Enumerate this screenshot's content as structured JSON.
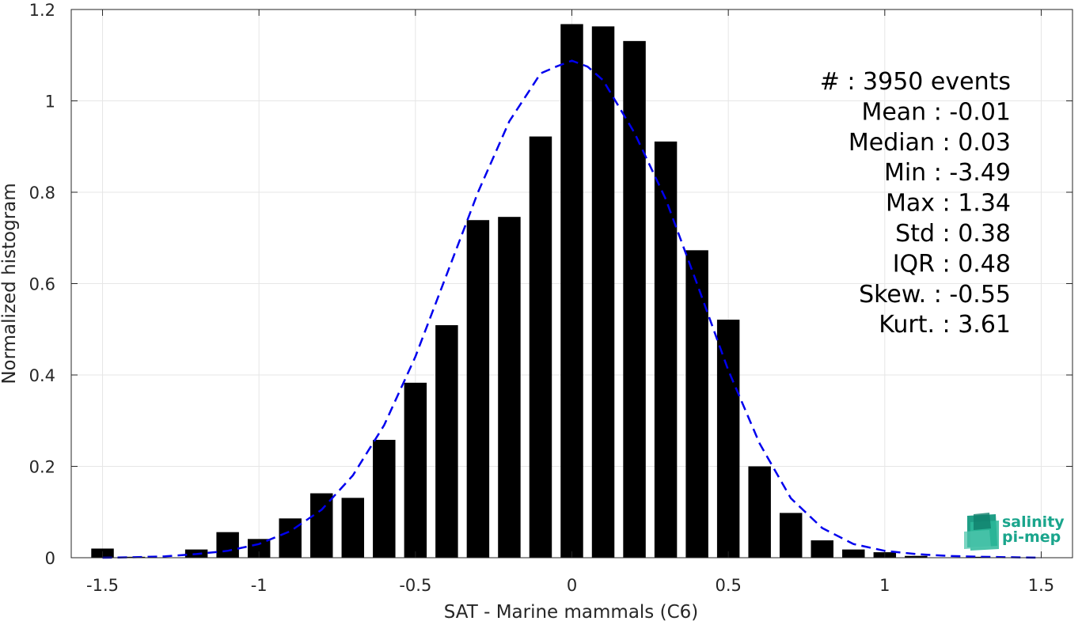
{
  "chart_data": {
    "type": "bar",
    "xlabel": "SAT - Marine mammals (C6)",
    "ylabel": "Normalized histogram",
    "xlim": [
      -1.6,
      1.6
    ],
    "ylim": [
      0,
      1.2
    ],
    "xticks": [
      -1.5,
      -1,
      -0.5,
      0,
      0.5,
      1,
      1.5
    ],
    "xtick_labels": [
      "-1.5",
      "-1",
      "-0.5",
      "0",
      "0.5",
      "1",
      "1.5"
    ],
    "yticks": [
      0,
      0.2,
      0.4,
      0.6,
      0.8,
      1,
      1.2
    ],
    "ytick_labels": [
      "0",
      "0.2",
      "0.4",
      "0.6",
      "0.8",
      "1",
      "1.2"
    ],
    "grid": true,
    "bar_color": "#000000",
    "bars": {
      "x": [
        -1.5,
        -1.4,
        -1.3,
        -1.2,
        -1.1,
        -1.0,
        -0.9,
        -0.8,
        -0.7,
        -0.6,
        -0.5,
        -0.4,
        -0.3,
        -0.2,
        -0.1,
        0.0,
        0.1,
        0.2,
        0.3,
        0.4,
        0.5,
        0.6,
        0.7,
        0.8,
        0.9,
        1.0,
        1.1,
        1.2,
        1.3,
        1.4,
        1.5
      ],
      "values": [
        0.02,
        0.002,
        0.0,
        0.018,
        0.056,
        0.041,
        0.086,
        0.141,
        0.131,
        0.258,
        0.383,
        0.509,
        0.739,
        0.746,
        0.922,
        1.168,
        1.163,
        1.131,
        0.911,
        0.673,
        0.521,
        0.2,
        0.098,
        0.038,
        0.018,
        0.012,
        0.004,
        0.0,
        0.002,
        0.0,
        0.0
      ]
    },
    "fit_curve": {
      "style": "dashed",
      "color": "#0000ee",
      "x": [
        -1.5,
        -1.4,
        -1.3,
        -1.2,
        -1.1,
        -1.0,
        -0.9,
        -0.8,
        -0.7,
        -0.6,
        -0.5,
        -0.4,
        -0.3,
        -0.2,
        -0.1,
        -0.05,
        0.0,
        0.05,
        0.1,
        0.2,
        0.3,
        0.4,
        0.5,
        0.6,
        0.7,
        0.8,
        0.9,
        1.0,
        1.1,
        1.2,
        1.3,
        1.4,
        1.5
      ],
      "y": [
        0.0,
        0.001,
        0.003,
        0.008,
        0.015,
        0.03,
        0.058,
        0.105,
        0.18,
        0.29,
        0.44,
        0.62,
        0.8,
        0.955,
        1.06,
        1.075,
        1.088,
        1.075,
        1.045,
        0.93,
        0.785,
        0.6,
        0.41,
        0.25,
        0.13,
        0.065,
        0.03,
        0.015,
        0.008,
        0.004,
        0.002,
        0.001,
        0.0
      ]
    },
    "stats": [
      {
        "label": "#  : 3950 events"
      },
      {
        "label": "Mean : -0.01"
      },
      {
        "label": "Median : 0.03"
      },
      {
        "label": "Min : -3.49"
      },
      {
        "label": "Max : 1.34"
      },
      {
        "label": "Std : 0.38"
      },
      {
        "label": "IQR : 0.48"
      },
      {
        "label": "Skew. : -0.55"
      },
      {
        "label": "Kurt. : 3.61"
      }
    ]
  },
  "logo": {
    "line1": "salinity",
    "line2": "pi-mep",
    "color": "#1aa58c"
  }
}
